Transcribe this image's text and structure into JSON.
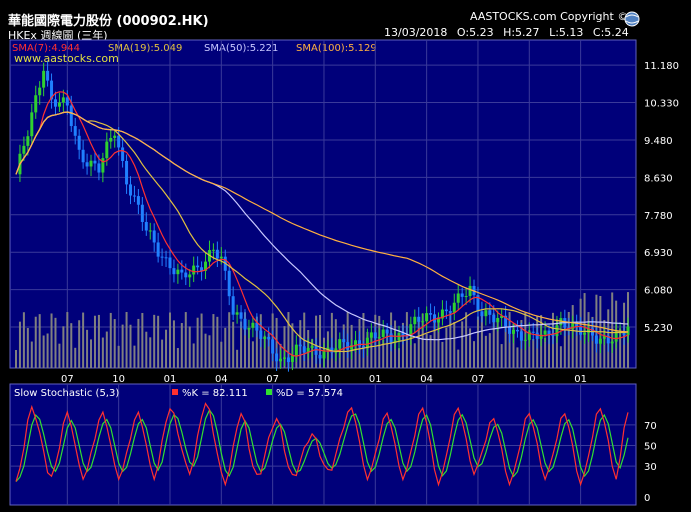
{
  "header": {
    "title": "華能國際電力股份 (000902.HK)",
    "subtitle": "HKEx 週線圖 (三年)",
    "date": "13/03/2018",
    "ohlc": {
      "open": "O:5.23",
      "high": "H:5.27",
      "low": "L:5.13",
      "close": "C:5.24"
    },
    "copyright": "AASTOCKS.com Copyright ©",
    "watermark": "www.aastocks.com"
  },
  "legend": [
    {
      "label": "SMA(7):4.944",
      "color": "#ff3030"
    },
    {
      "label": "SMA(19):5.049",
      "color": "#e0c040"
    },
    {
      "label": "SMA(50):5.221",
      "color": "#c8c8ff"
    },
    {
      "label": "SMA(100):5.129",
      "color": "#ffb040"
    }
  ],
  "stoch_legend": {
    "title": "Slow Stochastic (5,3)",
    "k": {
      "label": "%K = 82.111",
      "color": "#ff3030"
    },
    "d": {
      "label": "%D = 57.574",
      "color": "#30e030"
    }
  },
  "colors": {
    "up": "#30d030",
    "down": "#2080ff",
    "volume": "#808080",
    "grid": "#3a3a9a",
    "bg": "#00007a"
  },
  "chart_data": [
    {
      "type": "line",
      "name": "price",
      "y_ticks": [
        "11.180",
        "10.330",
        "9.480",
        "8.630",
        "7.780",
        "6.930",
        "6.080",
        "5.230"
      ],
      "y_values": [
        11.18,
        10.33,
        9.48,
        8.63,
        7.78,
        6.93,
        6.08,
        5.23
      ],
      "x_ticks": [
        "07",
        "10",
        "01",
        "04",
        "07",
        "10",
        "01",
        "04",
        "07",
        "10",
        "01"
      ],
      "x_tick_weeks": [
        13,
        26,
        39,
        52,
        65,
        78,
        91,
        104,
        117,
        130,
        143
      ],
      "weeks": 156,
      "close_keypoints": [
        [
          0,
          8.7
        ],
        [
          3,
          9.6
        ],
        [
          7,
          11.2
        ],
        [
          9,
          10.4
        ],
        [
          13,
          10.2
        ],
        [
          16,
          9.2
        ],
        [
          21,
          8.8
        ],
        [
          25,
          9.7
        ],
        [
          28,
          8.6
        ],
        [
          33,
          7.4
        ],
        [
          36,
          7.0
        ],
        [
          42,
          6.3
        ],
        [
          46,
          6.6
        ],
        [
          50,
          7.0
        ],
        [
          52,
          6.7
        ],
        [
          55,
          5.6
        ],
        [
          60,
          5.2
        ],
        [
          64,
          4.8
        ],
        [
          67,
          4.5
        ],
        [
          72,
          4.7
        ],
        [
          78,
          4.7
        ],
        [
          84,
          4.8
        ],
        [
          90,
          5.0
        ],
        [
          96,
          5.0
        ],
        [
          101,
          5.3
        ],
        [
          106,
          5.5
        ],
        [
          111,
          5.7
        ],
        [
          115,
          6.1
        ],
        [
          118,
          5.6
        ],
        [
          121,
          5.4
        ],
        [
          125,
          5.2
        ],
        [
          130,
          5.0
        ],
        [
          134,
          5.0
        ],
        [
          138,
          5.4
        ],
        [
          142,
          5.1
        ],
        [
          146,
          5.1
        ],
        [
          150,
          4.9
        ],
        [
          153,
          5.0
        ],
        [
          155,
          5.24
        ]
      ],
      "sma_last": {
        "sma7": 4.944,
        "sma19": 5.049,
        "sma50": 5.221,
        "sma100": 5.129
      }
    },
    {
      "type": "line",
      "name": "slow-stochastic",
      "y_ticks": [
        "70",
        "50",
        "30",
        "0"
      ],
      "y_values": [
        70,
        50,
        30,
        0
      ],
      "k_peaks": [
        [
          0,
          15
        ],
        [
          4,
          85
        ],
        [
          9,
          20
        ],
        [
          13,
          80
        ],
        [
          17,
          20
        ],
        [
          22,
          80
        ],
        [
          26,
          20
        ],
        [
          31,
          80
        ],
        [
          35,
          20
        ],
        [
          39,
          85
        ],
        [
          44,
          25
        ],
        [
          48,
          90
        ],
        [
          53,
          15
        ],
        [
          57,
          80
        ],
        [
          61,
          20
        ],
        [
          66,
          75
        ],
        [
          70,
          20
        ],
        [
          75,
          60
        ],
        [
          79,
          25
        ],
        [
          85,
          85
        ],
        [
          89,
          20
        ],
        [
          94,
          80
        ],
        [
          98,
          20
        ],
        [
          103,
          85
        ],
        [
          107,
          15
        ],
        [
          112,
          85
        ],
        [
          116,
          25
        ],
        [
          121,
          75
        ],
        [
          125,
          15
        ],
        [
          130,
          80
        ],
        [
          134,
          20
        ],
        [
          139,
          80
        ],
        [
          143,
          15
        ],
        [
          148,
          85
        ],
        [
          152,
          20
        ],
        [
          155,
          82.1
        ]
      ],
      "last": {
        "k": 82.111,
        "d": 57.574
      }
    }
  ]
}
